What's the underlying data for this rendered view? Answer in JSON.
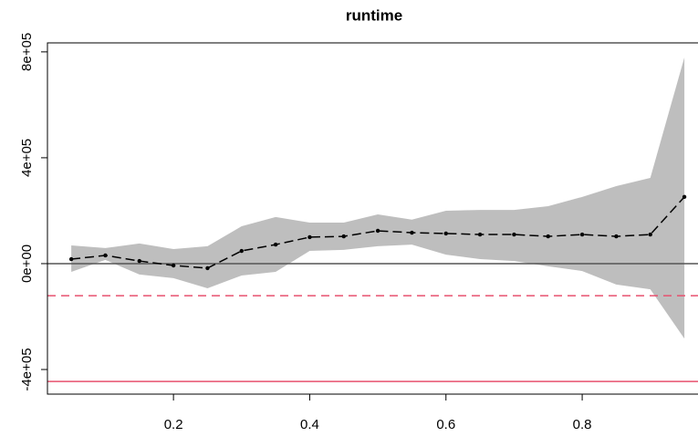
{
  "chart_data": {
    "type": "line",
    "title": "runtime",
    "x": [
      0.05,
      0.1,
      0.15,
      0.2,
      0.25,
      0.3,
      0.35,
      0.4,
      0.45,
      0.5,
      0.55,
      0.6,
      0.65,
      0.7,
      0.75,
      0.8,
      0.85,
      0.9,
      0.95
    ],
    "series": [
      {
        "color": "#000000",
        "values": [
          17000,
          31000,
          10000,
          -7000,
          -17000,
          48000,
          72000,
          100000,
          103000,
          124000,
          117000,
          114000,
          110000,
          110000,
          103000,
          110000,
          103000,
          110000,
          252000
        ]
      }
    ],
    "band": {
      "color": "#bebebe",
      "upper": [
        69000,
        59000,
        76000,
        55000,
        66000,
        141000,
        176000,
        155000,
        155000,
        186000,
        166000,
        200000,
        203000,
        203000,
        217000,
        252000,
        293000,
        324000,
        779000
      ],
      "lower": [
        -31000,
        14000,
        -41000,
        -55000,
        -93000,
        -45000,
        -31000,
        48000,
        52000,
        66000,
        72000,
        34000,
        17000,
        10000,
        -10000,
        -28000,
        -79000,
        -97000,
        -283000
      ]
    },
    "hlines": [
      {
        "value": 0,
        "color": "#555555",
        "dashed": false
      },
      {
        "value": -121000,
        "color": "#e8506e",
        "dashed": true
      },
      {
        "value": -445000,
        "color": "#e8506e",
        "dashed": false
      }
    ],
    "xlim": [
      0.015,
      0.97
    ],
    "ylim": [
      -493000,
      834000
    ],
    "xticks": [
      0.2,
      0.4,
      0.6,
      0.8
    ],
    "yticks": [
      {
        "value": -400000,
        "label": "-4e+05"
      },
      {
        "value": 0,
        "label": "0e+00"
      },
      {
        "value": 400000,
        "label": "4e+05"
      },
      {
        "value": 800000,
        "label": "8e+05"
      }
    ]
  }
}
